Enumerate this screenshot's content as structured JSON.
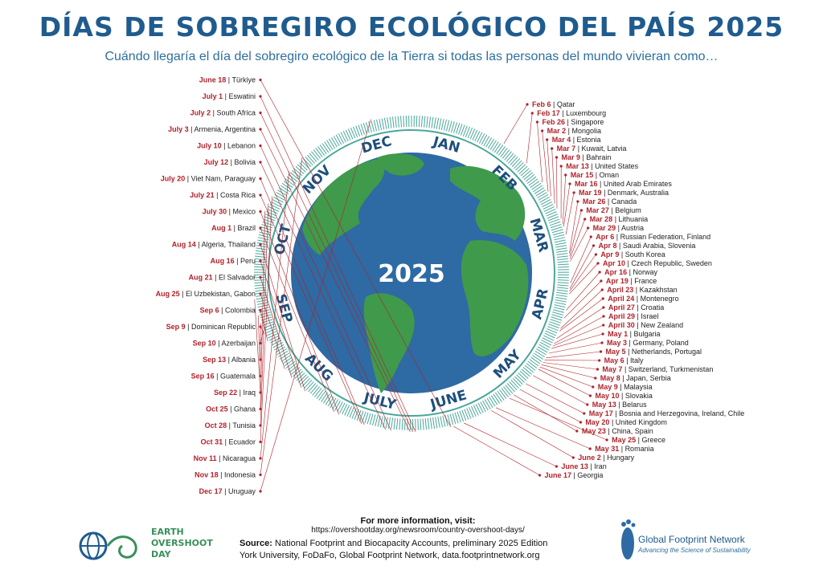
{
  "header": {
    "title": "DÍAS DE SOBREGIRO ECOLÓGICO DEL PAÍS 2025",
    "subtitle": "Cuándo llegaría el día del sobregiro ecológico de la Tierra si todas las personas del mundo vivieran como…"
  },
  "center": {
    "year": "2025"
  },
  "months": [
    "JAN",
    "FEB",
    "MAR",
    "APR",
    "MAY",
    "JUNE",
    "JULY",
    "AUG",
    "SEP",
    "OCT",
    "NOV",
    "DEC"
  ],
  "colors": {
    "title": "#1f5b8e",
    "date": "#b0222b",
    "ocean": "#2e6aa3",
    "land": "#3f9a4c",
    "ring": "#4aa79a",
    "leader": "#b0222b"
  },
  "chart_data": {
    "type": "radial-timeline",
    "entries": [
      {
        "date": "Feb 6",
        "day": 37,
        "country": "Qatar"
      },
      {
        "date": "Feb 17",
        "day": 48,
        "country": "Luxembourg"
      },
      {
        "date": "Feb 26",
        "day": 57,
        "country": "Singapore"
      },
      {
        "date": "Mar 2",
        "day": 61,
        "country": "Mongolia"
      },
      {
        "date": "Mar 4",
        "day": 63,
        "country": "Estonia"
      },
      {
        "date": "Mar 7",
        "day": 66,
        "country": "Kuwait, Latvia"
      },
      {
        "date": "Mar 9",
        "day": 68,
        "country": "Bahrain"
      },
      {
        "date": "Mar 13",
        "day": 72,
        "country": "United States"
      },
      {
        "date": "Mar 15",
        "day": 74,
        "country": "Oman"
      },
      {
        "date": "Mar 16",
        "day": 75,
        "country": "United Arab Emirates"
      },
      {
        "date": "Mar 19",
        "day": 78,
        "country": "Denmark, Australia"
      },
      {
        "date": "Mar 26",
        "day": 85,
        "country": "Canada"
      },
      {
        "date": "Mar 27",
        "day": 86,
        "country": "Belgium"
      },
      {
        "date": "Mar 28",
        "day": 87,
        "country": "Lithuania"
      },
      {
        "date": "Mar 29",
        "day": 88,
        "country": "Austria"
      },
      {
        "date": "Apr 6",
        "day": 96,
        "country": "Russian Federation, Finland"
      },
      {
        "date": "Apr 8",
        "day": 98,
        "country": "Saudi Arabia, Slovenia"
      },
      {
        "date": "Apr 9",
        "day": 99,
        "country": "South Korea"
      },
      {
        "date": "Apr 10",
        "day": 100,
        "country": "Czech Republic, Sweden"
      },
      {
        "date": "Apr 16",
        "day": 106,
        "country": "Norway"
      },
      {
        "date": "Apr 19",
        "day": 109,
        "country": "France"
      },
      {
        "date": "April 23",
        "day": 113,
        "country": "Kazakhstan"
      },
      {
        "date": "April 24",
        "day": 114,
        "country": "Montenegro"
      },
      {
        "date": "April 27",
        "day": 117,
        "country": "Croatia"
      },
      {
        "date": "April 29",
        "day": 119,
        "country": "Israel"
      },
      {
        "date": "April 30",
        "day": 120,
        "country": "New Zealand"
      },
      {
        "date": "May 1",
        "day": 121,
        "country": "Bulgaria"
      },
      {
        "date": "May 3",
        "day": 123,
        "country": "Germany, Poland"
      },
      {
        "date": "May 5",
        "day": 125,
        "country": "Netherlands, Portugal"
      },
      {
        "date": "May 6",
        "day": 126,
        "country": "Italy"
      },
      {
        "date": "May 7",
        "day": 127,
        "country": "Switzerland, Turkmenistan"
      },
      {
        "date": "May 8",
        "day": 128,
        "country": "Japan, Serbia"
      },
      {
        "date": "May 9",
        "day": 129,
        "country": "Malaysia"
      },
      {
        "date": "May 10",
        "day": 130,
        "country": "Slovakia"
      },
      {
        "date": "May 13",
        "day": 133,
        "country": "Belarus"
      },
      {
        "date": "May 17",
        "day": 137,
        "country": "Bosnia and Herzegovina, Ireland, Chile"
      },
      {
        "date": "May 20",
        "day": 140,
        "country": "United Kingdom"
      },
      {
        "date": "May 23",
        "day": 143,
        "country": "China, Spain"
      },
      {
        "date": "May 25",
        "day": 145,
        "country": "Greece"
      },
      {
        "date": "May 31",
        "day": 151,
        "country": "Romania"
      },
      {
        "date": "June 2",
        "day": 153,
        "country": "Hungary"
      },
      {
        "date": "June 13",
        "day": 164,
        "country": "Iran"
      },
      {
        "date": "June 17",
        "day": 168,
        "country": "Georgia"
      },
      {
        "date": "June 18",
        "day": 169,
        "country": "Türkiye"
      },
      {
        "date": "July 1",
        "day": 182,
        "country": "Eswatini"
      },
      {
        "date": "July 2",
        "day": 183,
        "country": "South Africa"
      },
      {
        "date": "July 3",
        "day": 184,
        "country": "Armenia, Argentina"
      },
      {
        "date": "July 10",
        "day": 191,
        "country": "Lebanon"
      },
      {
        "date": "July 12",
        "day": 193,
        "country": "Bolivia"
      },
      {
        "date": "July 20",
        "day": 201,
        "country": "Viet Nam, Paraguay"
      },
      {
        "date": "July 21",
        "day": 202,
        "country": "Costa Rica"
      },
      {
        "date": "July 30",
        "day": 211,
        "country": "Mexico"
      },
      {
        "date": "Aug 1",
        "day": 213,
        "country": "Brazil"
      },
      {
        "date": "Aug 14",
        "day": 226,
        "country": "Algeria, Thailand"
      },
      {
        "date": "Aug 16",
        "day": 228,
        "country": "Peru"
      },
      {
        "date": "Aug 21",
        "day": 233,
        "country": "El Salvador"
      },
      {
        "date": "Aug 25",
        "day": 237,
        "country": "El Uzbekistan, Gabon"
      },
      {
        "date": "Sep 6",
        "day": 249,
        "country": "Colombia"
      },
      {
        "date": "Sep 9",
        "day": 252,
        "country": "Dominican Republic"
      },
      {
        "date": "Sep 10",
        "day": 253,
        "country": "Azerbaijan"
      },
      {
        "date": "Sep 13",
        "day": 256,
        "country": "Albania"
      },
      {
        "date": "Sep 16",
        "day": 259,
        "country": "Guatemala"
      },
      {
        "date": "Sep 22",
        "day": 265,
        "country": "Iraq"
      },
      {
        "date": "Oct 25",
        "day": 298,
        "country": "Ghana"
      },
      {
        "date": "Oct 28",
        "day": 301,
        "country": "Tunisia"
      },
      {
        "date": "Oct 31",
        "day": 304,
        "country": "Ecuador"
      },
      {
        "date": "Nov 11",
        "day": 315,
        "country": "Nicaragua"
      },
      {
        "date": "Nov 18",
        "day": 322,
        "country": "Indonesia"
      },
      {
        "date": "Dec 17",
        "day": 351,
        "country": "Uruguay"
      }
    ]
  },
  "footer": {
    "more_label": "For more information, visit:",
    "url": "https://overshootday.org/newsroom/country-overshoot-days/",
    "source_label": "Source:",
    "source_text": "National Footprint and Biocapacity Accounts, preliminary 2025 Edition",
    "source_line2": "York University, FoDaFo, Global Footprint Network, data.footprintnetwork.org",
    "eod_line1": "EARTH",
    "eod_line2": "OVERSHOOT",
    "eod_line3": "DAY",
    "gfn_name": "Global Footprint Network",
    "gfn_tagline": "Advancing the Science of Sustainability"
  }
}
